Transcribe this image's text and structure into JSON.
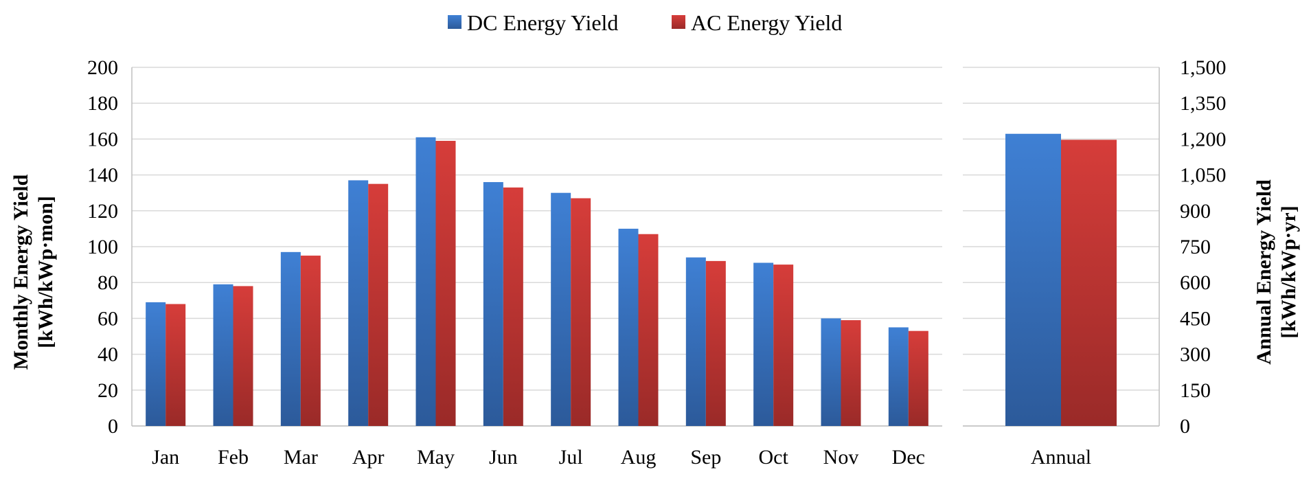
{
  "chart_data": [
    {
      "type": "bar",
      "panel": "monthly",
      "categories": [
        "Jan",
        "Feb",
        "Mar",
        "Apr",
        "May",
        "Jun",
        "Jul",
        "Aug",
        "Sep",
        "Oct",
        "Nov",
        "Dec"
      ],
      "series": [
        {
          "name": "DC Energy Yield",
          "values": [
            69,
            79,
            97,
            137,
            161,
            136,
            130,
            110,
            94,
            91,
            60,
            55
          ]
        },
        {
          "name": "AC Energy Yield",
          "values": [
            68,
            78,
            95,
            135,
            159,
            133,
            127,
            107,
            92,
            90,
            59,
            53
          ]
        }
      ],
      "ylabel": [
        "Monthly Energy Yield",
        "[kWh/kWp·mon]"
      ],
      "ylim": [
        0,
        200
      ],
      "yticks": [
        "0",
        "20",
        "40",
        "60",
        "80",
        "100",
        "120",
        "140",
        "160",
        "180",
        "200"
      ],
      "grid": true
    },
    {
      "type": "bar",
      "panel": "annual",
      "categories": [
        "Annual"
      ],
      "series": [
        {
          "name": "DC Energy Yield",
          "values": [
            1222
          ]
        },
        {
          "name": "AC Energy Yield",
          "values": [
            1197
          ]
        }
      ],
      "ylabel": [
        "Annual Energy Yield",
        "[kWh/kWp·yr]"
      ],
      "ylim": [
        0,
        1500
      ],
      "yticks": [
        "0",
        "150",
        "300",
        "450",
        "600",
        "750",
        "900",
        "1,050",
        "1,200",
        "1,350",
        "1,500"
      ],
      "grid": true
    }
  ],
  "legend": {
    "position": "top-center",
    "items": [
      {
        "label": "DC Energy Yield",
        "color": "#3a78c9"
      },
      {
        "label": "AC Energy Yield",
        "color": "#cf3a37"
      }
    ]
  },
  "colors": {
    "dc_top": "#3f80d4",
    "dc_bottom": "#2c5a9a",
    "ac_top": "#d63d3a",
    "ac_bottom": "#9a2a28"
  }
}
